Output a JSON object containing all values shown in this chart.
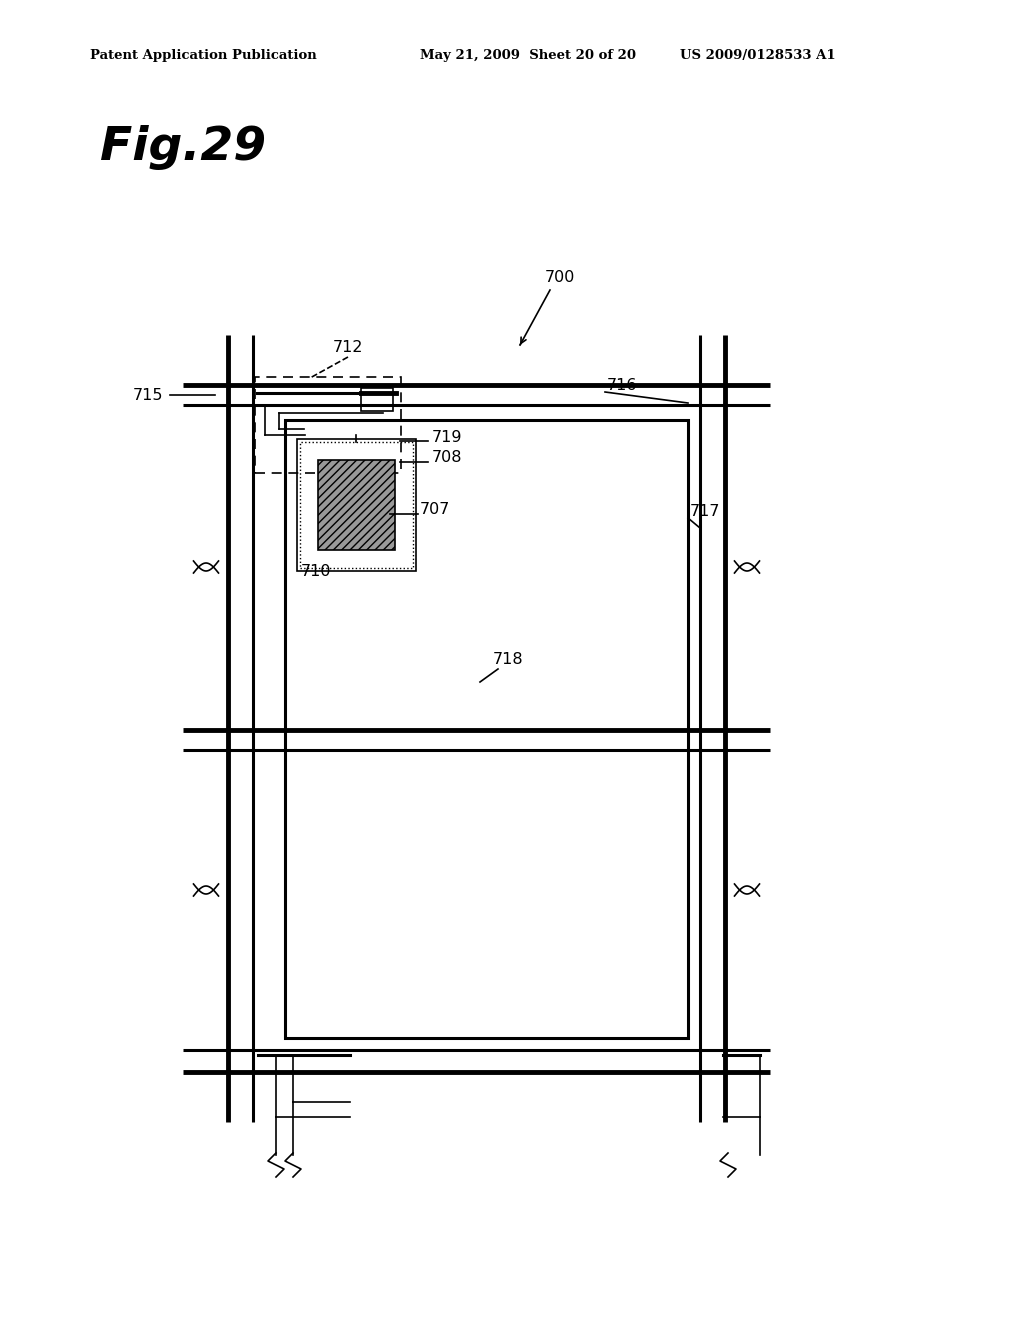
{
  "bg_color": "#ffffff",
  "fig_width": 10.24,
  "fig_height": 13.2,
  "header_left": "Patent Application Publication",
  "header_mid": "May 21, 2009  Sheet 20 of 20",
  "header_right": "US 2009/0128533 A1",
  "fig_label": "Fig.29"
}
